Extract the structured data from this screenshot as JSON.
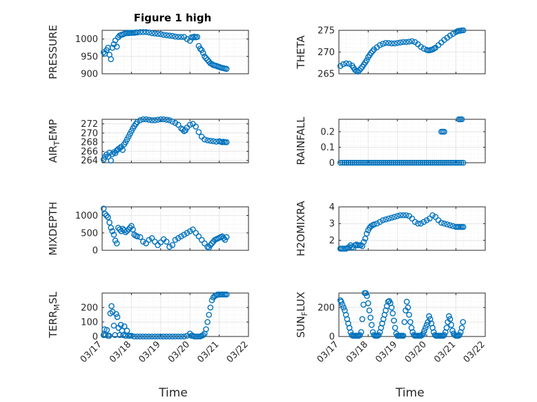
{
  "title": "Figure 1 high",
  "xlabel": "Time",
  "x_ticks": [
    "03/17",
    "03/18",
    "03/19",
    "03/20",
    "03/21",
    "03/22"
  ],
  "marker_color": "#0072BD",
  "chart_data": [
    {
      "type": "scatter",
      "ylabel": "PRESSURE",
      "ylim": [
        900,
        1025
      ],
      "yticks": [
        900,
        950,
        1000
      ],
      "ytick_labels": [
        "900",
        "950",
        "1000"
      ],
      "xlim": [
        0,
        5
      ],
      "grid": true,
      "marker": "open-circle",
      "x": [
        0.05,
        0.1,
        0.15,
        0.2,
        0.25,
        0.3,
        0.35,
        0.4,
        0.45,
        0.5,
        0.55,
        0.6,
        0.65,
        0.7,
        0.75,
        0.8,
        0.85,
        0.9,
        0.95,
        1.0,
        1.05,
        1.1,
        1.15,
        1.2,
        1.3,
        1.4,
        1.5,
        1.6,
        1.7,
        1.8,
        1.9,
        2.0,
        2.1,
        2.2,
        2.3,
        2.4,
        2.5,
        2.6,
        2.7,
        2.8,
        2.9,
        3.0,
        3.05,
        3.1,
        3.15,
        3.2,
        3.25,
        3.3,
        3.35,
        3.4,
        3.45,
        3.5,
        3.55,
        3.6,
        3.65,
        3.7,
        3.75,
        3.8,
        3.85,
        3.9,
        3.95,
        4.0,
        4.05,
        4.1,
        4.15,
        4.2,
        4.25
      ],
      "y": [
        962,
        958,
        968,
        975,
        955,
        942,
        975,
        985,
        996,
        978,
        1005,
        1010,
        1012,
        1013,
        1015,
        1017,
        1017,
        1017,
        1018,
        1018,
        1018,
        1018,
        1019,
        1019,
        1020,
        1020,
        1020,
        1019,
        1017,
        1016,
        1015,
        1014,
        1012,
        1011,
        1010,
        1009,
        1007,
        1006,
        1006,
        1006,
        1000,
        995,
        1005,
        1004,
        1007,
        1005,
        1006,
        980,
        972,
        968,
        960,
        950,
        945,
        940,
        935,
        930,
        928,
        925,
        924,
        923,
        921,
        920,
        918,
        917,
        916,
        915,
        914
      ]
    },
    {
      "type": "scatter",
      "ylabel": "THETA",
      "ylim": [
        265,
        275
      ],
      "yticks": [
        265,
        270,
        275
      ],
      "ytick_labels": [
        "265",
        "270",
        "275"
      ],
      "xlim": [
        0,
        5
      ],
      "grid": true,
      "marker": "open-circle",
      "x": [
        0.05,
        0.15,
        0.25,
        0.35,
        0.45,
        0.5,
        0.55,
        0.6,
        0.65,
        0.7,
        0.75,
        0.8,
        0.85,
        0.9,
        0.95,
        1.0,
        1.05,
        1.1,
        1.15,
        1.2,
        1.3,
        1.4,
        1.5,
        1.6,
        1.7,
        1.8,
        1.9,
        2.0,
        2.1,
        2.2,
        2.3,
        2.4,
        2.5,
        2.6,
        2.7,
        2.8,
        2.9,
        3.0,
        3.05,
        3.1,
        3.15,
        3.2,
        3.25,
        3.3,
        3.4,
        3.5,
        3.6,
        3.7,
        3.8,
        3.9,
        4.0,
        4.05,
        4.1,
        4.15,
        4.2,
        4.25
      ],
      "y": [
        266.8,
        267.2,
        267.4,
        267.3,
        266.9,
        266.4,
        265.9,
        265.7,
        265.5,
        265.8,
        266.2,
        266.6,
        267.1,
        267.6,
        268.1,
        268.8,
        269.3,
        269.8,
        270.2,
        270.6,
        271.1,
        271.6,
        271.9,
        272.1,
        272.1,
        272.0,
        272.0,
        272.1,
        272.2,
        272.3,
        272.3,
        272.4,
        272.5,
        272.3,
        271.8,
        271.2,
        270.8,
        270.5,
        270.4,
        270.4,
        270.5,
        270.6,
        270.8,
        271.0,
        271.6,
        272.2,
        272.8,
        273.3,
        273.8,
        274.2,
        274.6,
        274.8,
        274.9,
        274.9,
        275.0,
        275.0
      ]
    },
    {
      "type": "scatter",
      "ylabel": "AIR",
      "ylabel_sub": "T",
      "ylabel_tail": "EMP",
      "ylim": [
        263.5,
        273
      ],
      "yticks": [
        264,
        266,
        268,
        270,
        272
      ],
      "ytick_labels": [
        "264",
        "266",
        "268",
        "270",
        "272"
      ],
      "xlim": [
        0,
        5
      ],
      "grid": true,
      "marker": "open-circle",
      "x": [
        0.05,
        0.1,
        0.15,
        0.2,
        0.25,
        0.3,
        0.35,
        0.4,
        0.45,
        0.5,
        0.55,
        0.6,
        0.65,
        0.7,
        0.75,
        0.8,
        0.85,
        0.9,
        0.95,
        1.0,
        1.05,
        1.1,
        1.15,
        1.2,
        1.3,
        1.4,
        1.5,
        1.6,
        1.7,
        1.8,
        1.9,
        2.0,
        2.1,
        2.2,
        2.3,
        2.4,
        2.5,
        2.6,
        2.7,
        2.75,
        2.8,
        2.85,
        2.9,
        3.0,
        3.1,
        3.2,
        3.3,
        3.4,
        3.5,
        3.6,
        3.7,
        3.8,
        3.9,
        4.0,
        4.05,
        4.1,
        4.15,
        4.2,
        4.25
      ],
      "y": [
        264.2,
        264.8,
        265.3,
        264.8,
        265.7,
        264.0,
        265.4,
        265.8,
        265.6,
        266.2,
        266.5,
        266.7,
        267.0,
        266.3,
        267.5,
        268.0,
        268.6,
        269.2,
        269.8,
        270.4,
        271.0,
        271.5,
        272.0,
        272.4,
        272.8,
        273.0,
        273.0,
        272.9,
        272.8,
        272.8,
        272.9,
        273.0,
        273.0,
        272.9,
        272.8,
        272.5,
        272.2,
        271.8,
        271.0,
        270.8,
        270.4,
        270.6,
        271.2,
        271.8,
        272.0,
        271.4,
        270.2,
        269.2,
        268.6,
        268.4,
        268.3,
        268.2,
        268.1,
        268.2,
        268.1,
        268.0,
        268.1,
        268.0,
        268.0
      ]
    },
    {
      "type": "scatter",
      "ylabel": "RAINFALL",
      "ylim": [
        0,
        0.28
      ],
      "yticks": [
        0,
        0.1,
        0.2
      ],
      "ytick_labels": [
        "0",
        "0.1",
        "0.2"
      ],
      "xlim": [
        0,
        5
      ],
      "grid": true,
      "marker": "open-circle",
      "x": [
        0.05,
        0.12,
        0.19,
        0.26,
        0.33,
        0.4,
        0.47,
        0.54,
        0.61,
        0.68,
        0.75,
        0.82,
        0.89,
        0.96,
        1.03,
        1.1,
        1.17,
        1.24,
        1.31,
        1.38,
        1.45,
        1.52,
        1.59,
        1.66,
        1.73,
        1.8,
        1.87,
        1.94,
        2.01,
        2.08,
        2.15,
        2.22,
        2.29,
        2.36,
        2.43,
        2.5,
        2.57,
        2.64,
        2.71,
        2.78,
        2.85,
        2.92,
        2.99,
        3.06,
        3.13,
        3.2,
        3.27,
        3.34,
        3.41,
        3.48,
        3.55,
        3.62,
        3.69,
        3.76,
        3.83,
        3.9,
        3.97,
        4.04,
        4.11,
        4.18,
        4.25,
        3.5,
        3.55,
        3.6,
        4.1,
        4.15,
        4.2
      ],
      "y": [
        0,
        0,
        0,
        0,
        0,
        0,
        0,
        0,
        0,
        0,
        0,
        0,
        0,
        0,
        0,
        0,
        0,
        0,
        0,
        0,
        0,
        0,
        0,
        0,
        0,
        0,
        0,
        0,
        0,
        0,
        0,
        0,
        0,
        0,
        0,
        0,
        0,
        0,
        0,
        0,
        0,
        0,
        0,
        0,
        0,
        0,
        0,
        0,
        0,
        0,
        0,
        0,
        0,
        0,
        0,
        0,
        0,
        0,
        0,
        0,
        0,
        0.2,
        0.2,
        0.2,
        0.28,
        0.28,
        0.28
      ]
    },
    {
      "type": "scatter",
      "ylabel": "MIXDEPTH",
      "ylim": [
        0,
        1250
      ],
      "yticks": [
        0,
        500,
        1000
      ],
      "ytick_labels": [
        "0",
        "500",
        "1000"
      ],
      "xlim": [
        0,
        5
      ],
      "grid": true,
      "marker": "open-circle",
      "x": [
        0.05,
        0.1,
        0.15,
        0.2,
        0.25,
        0.3,
        0.35,
        0.4,
        0.45,
        0.5,
        0.55,
        0.6,
        0.65,
        0.7,
        0.75,
        0.8,
        0.85,
        0.9,
        0.95,
        1.0,
        1.05,
        1.1,
        1.15,
        1.2,
        1.3,
        1.4,
        1.5,
        1.6,
        1.7,
        1.8,
        1.9,
        2.0,
        2.1,
        2.2,
        2.3,
        2.4,
        2.5,
        2.6,
        2.7,
        2.8,
        2.9,
        3.0,
        3.1,
        3.2,
        3.3,
        3.4,
        3.5,
        3.6,
        3.65,
        3.7,
        3.75,
        3.8,
        3.85,
        3.9,
        3.95,
        4.0,
        4.05,
        4.1,
        4.15,
        4.2,
        4.25
      ],
      "y": [
        1200,
        1050,
        1000,
        950,
        800,
        650,
        550,
        450,
        280,
        200,
        650,
        600,
        550,
        620,
        580,
        520,
        560,
        600,
        650,
        700,
        600,
        450,
        420,
        400,
        380,
        250,
        200,
        300,
        350,
        250,
        150,
        230,
        320,
        250,
        100,
        150,
        300,
        350,
        400,
        450,
        500,
        550,
        600,
        500,
        400,
        300,
        200,
        100,
        80,
        150,
        200,
        250,
        300,
        320,
        340,
        360,
        380,
        400,
        350,
        300,
        380
      ]
    },
    {
      "type": "scatter",
      "ylabel": "H2OMIXRA",
      "ylim": [
        1.4,
        4
      ],
      "yticks": [
        2,
        3,
        4
      ],
      "ytick_labels": [
        "2",
        "3",
        "4"
      ],
      "xlim": [
        0,
        5
      ],
      "grid": true,
      "marker": "open-circle",
      "x": [
        0.05,
        0.1,
        0.15,
        0.2,
        0.25,
        0.3,
        0.35,
        0.4,
        0.45,
        0.5,
        0.55,
        0.6,
        0.65,
        0.7,
        0.75,
        0.8,
        0.85,
        0.9,
        0.95,
        1.0,
        1.05,
        1.1,
        1.15,
        1.2,
        1.3,
        1.4,
        1.5,
        1.6,
        1.7,
        1.8,
        1.9,
        2.0,
        2.1,
        2.2,
        2.3,
        2.4,
        2.5,
        2.6,
        2.7,
        2.8,
        2.9,
        3.0,
        3.1,
        3.2,
        3.3,
        3.4,
        3.5,
        3.6,
        3.7,
        3.8,
        3.9,
        4.0,
        4.05,
        4.1,
        4.15,
        4.2,
        4.25
      ],
      "y": [
        1.5,
        1.5,
        1.5,
        1.5,
        1.5,
        1.55,
        1.6,
        1.7,
        1.6,
        1.55,
        1.7,
        1.75,
        1.7,
        1.7,
        1.72,
        1.65,
        1.9,
        2.1,
        2.4,
        2.6,
        2.75,
        2.85,
        2.9,
        2.95,
        3.0,
        3.1,
        3.2,
        3.25,
        3.3,
        3.35,
        3.4,
        3.45,
        3.5,
        3.5,
        3.5,
        3.45,
        3.3,
        3.1,
        3.0,
        3.0,
        3.1,
        3.2,
        3.3,
        3.5,
        3.4,
        3.2,
        3.05,
        3.0,
        2.95,
        2.9,
        2.85,
        2.8,
        2.8,
        2.8,
        2.8,
        2.8,
        2.8
      ]
    },
    {
      "type": "scatter",
      "ylabel": "TERR",
      "ylabel_sub": "M",
      "ylabel_tail": "SL",
      "ylim": [
        0,
        300
      ],
      "yticks": [
        0,
        100,
        200
      ],
      "ytick_labels": [
        "0",
        "100",
        "200"
      ],
      "xlim": [
        0,
        5
      ],
      "grid": true,
      "marker": "open-circle",
      "x": [
        0.05,
        0.08,
        0.12,
        0.16,
        0.2,
        0.24,
        0.28,
        0.32,
        0.36,
        0.4,
        0.44,
        0.48,
        0.52,
        0.56,
        0.6,
        0.64,
        0.68,
        0.72,
        0.76,
        0.8,
        0.85,
        0.9,
        0.95,
        1.0,
        1.1,
        1.2,
        1.3,
        1.4,
        1.5,
        1.6,
        1.7,
        1.8,
        1.9,
        2.0,
        2.1,
        2.2,
        2.3,
        2.4,
        2.5,
        2.6,
        2.7,
        2.8,
        2.9,
        3.0,
        3.05,
        3.1,
        3.15,
        3.2,
        3.25,
        3.3,
        3.35,
        3.4,
        3.45,
        3.5,
        3.55,
        3.6,
        3.65,
        3.7,
        3.75,
        3.8,
        3.85,
        3.9,
        3.95,
        4.0,
        4.05,
        4.1,
        4.15,
        4.2,
        4.25
      ],
      "y": [
        10,
        50,
        10,
        45,
        5,
        5,
        160,
        210,
        170,
        75,
        10,
        155,
        135,
        60,
        10,
        80,
        40,
        10,
        70,
        5,
        40,
        5,
        5,
        5,
        0,
        0,
        0,
        0,
        0,
        0,
        0,
        0,
        0,
        0,
        0,
        0,
        0,
        0,
        0,
        0,
        0,
        0,
        5,
        20,
        5,
        5,
        0,
        0,
        0,
        0,
        0,
        5,
        10,
        20,
        50,
        100,
        150,
        200,
        250,
        270,
        280,
        285,
        290,
        290,
        290,
        290,
        290,
        290,
        290
      ]
    },
    {
      "type": "scatter",
      "ylabel": "SUN",
      "ylabel_sub": "F",
      "ylabel_tail": "LUX",
      "ylim": [
        0,
        300
      ],
      "yticks": [
        0,
        100,
        200
      ],
      "ytick_labels": [
        "0",
        "200"
      ],
      "ytick_values": [
        0,
        200
      ],
      "xlim": [
        0,
        5
      ],
      "grid": true,
      "marker": "open-circle",
      "x": [
        0.05,
        0.08,
        0.12,
        0.16,
        0.2,
        0.24,
        0.28,
        0.32,
        0.36,
        0.4,
        0.44,
        0.48,
        0.52,
        0.56,
        0.6,
        0.64,
        0.68,
        0.72,
        0.76,
        0.8,
        0.84,
        0.88,
        0.92,
        0.96,
        1.0,
        1.04,
        1.08,
        1.12,
        1.16,
        1.2,
        1.24,
        1.28,
        1.32,
        1.36,
        1.4,
        1.44,
        1.48,
        1.52,
        1.56,
        1.6,
        1.64,
        1.68,
        1.72,
        1.76,
        1.8,
        1.84,
        1.88,
        1.92,
        1.96,
        2.0,
        2.04,
        2.08,
        2.12,
        2.16,
        2.2,
        2.24,
        2.28,
        2.32,
        2.36,
        2.4,
        2.44,
        2.48,
        2.52,
        2.56,
        2.6,
        2.64,
        2.68,
        2.72,
        2.76,
        2.8,
        2.84,
        2.88,
        2.92,
        2.96,
        3.0,
        3.04,
        3.08,
        3.12,
        3.16,
        3.2,
        3.24,
        3.28,
        3.32,
        3.36,
        3.4,
        3.44,
        3.48,
        3.52,
        3.56,
        3.6,
        3.64,
        3.68,
        3.72,
        3.76,
        3.8,
        3.84,
        3.88,
        3.92,
        3.96,
        4.0,
        4.04,
        4.08,
        4.12,
        4.16,
        4.2,
        4.24
      ],
      "y": [
        250,
        240,
        220,
        200,
        180,
        150,
        120,
        90,
        60,
        30,
        10,
        5,
        5,
        5,
        5,
        5,
        5,
        10,
        30,
        120,
        220,
        300,
        300,
        280,
        230,
        180,
        130,
        80,
        30,
        10,
        5,
        5,
        5,
        10,
        30,
        60,
        90,
        120,
        150,
        180,
        210,
        240,
        245,
        230,
        200,
        160,
        110,
        60,
        20,
        5,
        5,
        5,
        5,
        5,
        5,
        100,
        180,
        240,
        200,
        150,
        100,
        60,
        30,
        10,
        5,
        5,
        5,
        5,
        5,
        5,
        10,
        20,
        40,
        60,
        80,
        100,
        140,
        120,
        90,
        60,
        30,
        10,
        5,
        5,
        5,
        5,
        5,
        5,
        5,
        10,
        30,
        60,
        100,
        140,
        120,
        80,
        40,
        20,
        10,
        5,
        5,
        5,
        10,
        30,
        60,
        100
      ]
    }
  ]
}
